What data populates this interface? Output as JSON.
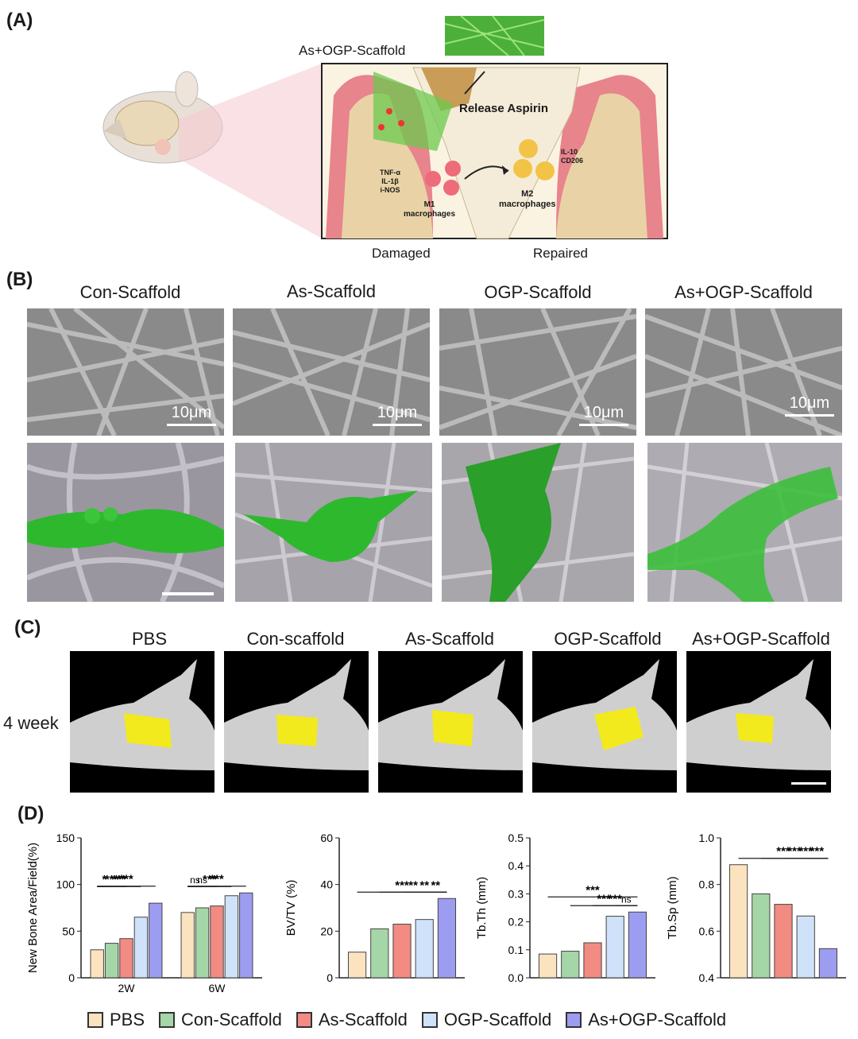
{
  "panel_labels": {
    "a": "(A)",
    "b": "(B)",
    "c": "(C)",
    "d": "(D)"
  },
  "schematic": {
    "scaffold_label": "As+OGP-Scaffold",
    "release": "Release Aspirin",
    "markers_left": [
      "TNF-α",
      "IL-1β",
      "i-NOS"
    ],
    "m1": [
      "M1",
      "macrophages"
    ],
    "m2": [
      "M2",
      "macrophages"
    ],
    "markers_right": [
      "IL-10",
      "CD206"
    ],
    "damaged": "Damaged",
    "repaired": "Repaired"
  },
  "sem_headers": [
    "Con-Scaffold",
    "As-Scaffold",
    "OGP-Scaffold",
    "As+OGP-Scaffold"
  ],
  "scale_label": "10μm",
  "ct_headers": [
    "PBS",
    "Con-scaffold",
    "As-Scaffold",
    "OGP-Scaffold",
    "As+OGP-Scaffold"
  ],
  "ct_row_label": "4 week",
  "colors": {
    "PBS": "#fbe3c0",
    "Con-Scaffold": "#a5d6a7",
    "As-Scaffold": "#f28b82",
    "OGP-Scaffold": "#cfe2f9",
    "As+OGP-Scaffold": "#9c9cf0",
    "ct_highlight": "#f2ea1c",
    "cell_green": "#2eb82e"
  },
  "legend": [
    "PBS",
    "Con-Scaffold",
    "As-Scaffold",
    "OGP-Scaffold",
    "As+OGP-Scaffold"
  ],
  "chart_data": [
    {
      "type": "bar",
      "ylabel": "New Bone Area/Field(%)",
      "categories": [
        "2W",
        "6W"
      ],
      "yticks": [
        0,
        50,
        100,
        150
      ],
      "ylim": [
        0,
        150
      ],
      "series": [
        {
          "name": "PBS",
          "values": [
            30,
            70
          ]
        },
        {
          "name": "Con-Scaffold",
          "values": [
            37,
            75
          ]
        },
        {
          "name": "As-Scaffold",
          "values": [
            42,
            77
          ]
        },
        {
          "name": "OGP-Scaffold",
          "values": [
            65,
            88
          ]
        },
        {
          "name": "As+OGP-Scaffold",
          "values": [
            80,
            91
          ]
        }
      ],
      "significance": [
        {
          "label": "*",
          "from": "PBS 2W",
          "to": "Con-Scaffold 2W"
        },
        {
          "label": "***",
          "from": "PBS 2W",
          "to": "As-Scaffold 2W"
        },
        {
          "label": "***",
          "from": "PBS 2W",
          "to": "OGP-Scaffold 2W"
        },
        {
          "label": "***",
          "from": "PBS 2W",
          "to": "As+OGP-Scaffold 2W"
        },
        {
          "label": "ns",
          "from": "PBS 6W",
          "to": "Con-Scaffold 6W"
        },
        {
          "label": "ns",
          "from": "PBS 6W",
          "to": "As-Scaffold 6W"
        },
        {
          "label": "***",
          "from": "PBS 6W",
          "to": "OGP-Scaffold 6W"
        },
        {
          "label": "***",
          "from": "PBS 6W",
          "to": "As+OGP-Scaffold 6W"
        }
      ]
    },
    {
      "type": "bar",
      "ylabel": "BV/TV (%)",
      "yticks": [
        0,
        20,
        40,
        60
      ],
      "ylim": [
        0,
        60
      ],
      "values": [
        11,
        21,
        23,
        25,
        34
      ],
      "significance": [
        {
          "label": "***",
          "from": "PBS",
          "to": "As+OGP-Scaffold"
        },
        {
          "label": "**",
          "from": "Con-Scaffold",
          "to": "As+OGP-Scaffold"
        },
        {
          "label": "**",
          "from": "As-Scaffold",
          "to": "As+OGP-Scaffold"
        },
        {
          "label": "**",
          "from": "OGP-Scaffold",
          "to": "As+OGP-Scaffold"
        }
      ]
    },
    {
      "type": "bar",
      "ylabel": "Tb.Th (mm)",
      "yticks": [
        0.0,
        0.1,
        0.2,
        0.3,
        0.4,
        0.5
      ],
      "ylim": [
        0,
        0.5
      ],
      "values": [
        0.085,
        0.095,
        0.125,
        0.22,
        0.235
      ],
      "significance": [
        {
          "label": "***",
          "from": "PBS",
          "to": "As+OGP-Scaffold"
        },
        {
          "label": "***",
          "from": "Con-Scaffold",
          "to": "As+OGP-Scaffold"
        },
        {
          "label": "***",
          "from": "As-Scaffold",
          "to": "As+OGP-Scaffold"
        },
        {
          "label": "ns",
          "from": "OGP-Scaffold",
          "to": "As+OGP-Scaffold"
        }
      ]
    },
    {
      "type": "bar",
      "ylabel": "Tb.Sp (mm)",
      "yticks": [
        0.4,
        0.6,
        0.8,
        1.0
      ],
      "ylim": [
        0.4,
        1.0
      ],
      "values": [
        0.885,
        0.76,
        0.715,
        0.665,
        0.525
      ],
      "significance": [
        {
          "label": "***",
          "from": "PBS",
          "to": "As+OGP-Scaffold"
        },
        {
          "label": "***",
          "from": "Con-Scaffold",
          "to": "As+OGP-Scaffold"
        },
        {
          "label": "***",
          "from": "As-Scaffold",
          "to": "As+OGP-Scaffold"
        },
        {
          "label": "***",
          "from": "OGP-Scaffold",
          "to": "As+OGP-Scaffold"
        }
      ]
    }
  ]
}
